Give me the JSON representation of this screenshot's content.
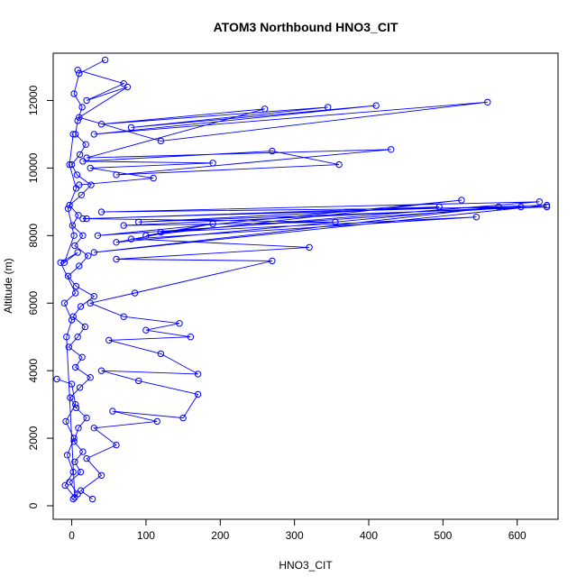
{
  "chart_data": {
    "type": "line",
    "title": "ATOM3 Northbound HNO3_CIT",
    "xlabel": "HNO3_CIT",
    "ylabel": "Altitude (m)",
    "xlim": [
      -25,
      655
    ],
    "ylim": [
      -400,
      13400
    ],
    "x_ticks": [
      0,
      100,
      200,
      300,
      400,
      500,
      600
    ],
    "y_ticks": [
      0,
      2000,
      4000,
      6000,
      8000,
      10000,
      12000
    ],
    "grid": false,
    "legend": "none",
    "colors": {
      "series": "#0000ff",
      "axes": "#000000"
    },
    "series": [
      {
        "points": [
          [
            2,
            200
          ],
          [
            8,
            350
          ],
          [
            -3,
            700
          ],
          [
            12,
            1000
          ],
          [
            4,
            1300
          ],
          [
            15,
            1600
          ],
          [
            3,
            1900
          ],
          [
            9,
            2300
          ],
          [
            20,
            2600
          ],
          [
            6,
            2900
          ],
          [
            -2,
            3200
          ],
          [
            11,
            3500
          ],
          [
            25,
            3800
          ],
          [
            5,
            4100
          ],
          [
            14,
            4400
          ],
          [
            -4,
            4700
          ],
          [
            8,
            5000
          ],
          [
            18,
            5300
          ],
          [
            2,
            5600
          ],
          [
            12,
            5900
          ],
          [
            30,
            6200
          ],
          [
            6,
            6500
          ],
          [
            -5,
            6800
          ],
          [
            10,
            7100
          ],
          [
            22,
            7400
          ],
          [
            4,
            7700
          ],
          [
            15,
            8000
          ],
          [
            1,
            8300
          ],
          [
            9,
            8600
          ],
          [
            -3,
            8900
          ],
          [
            13,
            9200
          ],
          [
            26,
            9500
          ],
          [
            7,
            9800
          ],
          [
            0,
            10100
          ],
          [
            11,
            10400
          ],
          [
            19,
            10700
          ],
          [
            5,
            11000
          ],
          [
            8,
            11400
          ],
          [
            14,
            11800
          ],
          [
            3,
            12200
          ],
          [
            10,
            12800
          ],
          [
            45,
            13200
          ]
        ]
      },
      {
        "points": [
          [
            28,
            200
          ],
          [
            12,
            450
          ],
          [
            40,
            900
          ],
          [
            20,
            1400
          ],
          [
            60,
            1800
          ],
          [
            30,
            2300
          ],
          [
            115,
            2500
          ],
          [
            55,
            2800
          ],
          [
            150,
            2600
          ],
          [
            170,
            3300
          ],
          [
            90,
            3700
          ],
          [
            40,
            4000
          ],
          [
            170,
            3900
          ],
          [
            120,
            4500
          ],
          [
            50,
            4900
          ],
          [
            160,
            5000
          ],
          [
            100,
            5200
          ],
          [
            145,
            5400
          ],
          [
            70,
            5600
          ],
          [
            25,
            6000
          ],
          [
            85,
            6300
          ],
          [
            270,
            7250
          ],
          [
            60,
            7300
          ],
          [
            320,
            7650
          ],
          [
            80,
            7900
          ],
          [
            545,
            8550
          ],
          [
            120,
            8100
          ],
          [
            630,
            9000
          ],
          [
            40,
            8700
          ],
          [
            640,
            8850
          ],
          [
            90,
            8400
          ],
          [
            495,
            8850
          ],
          [
            20,
            8500
          ],
          [
            355,
            8400
          ],
          [
            70,
            8300
          ],
          [
            605,
            8850
          ],
          [
            35,
            8000
          ],
          [
            525,
            9050
          ],
          [
            100,
            8000
          ],
          [
            190,
            8350
          ],
          [
            60,
            7800
          ],
          [
            575,
            8850
          ],
          [
            30,
            7500
          ],
          [
            640,
            8900
          ],
          [
            15,
            8500
          ]
        ]
      },
      {
        "points": [
          [
            10,
            9500
          ],
          [
            110,
            9700
          ],
          [
            25,
            10000
          ],
          [
            190,
            10150
          ],
          [
            15,
            10200
          ],
          [
            270,
            10500
          ],
          [
            360,
            10100
          ],
          [
            60,
            9800
          ],
          [
            430,
            10550
          ],
          [
            20,
            10300
          ],
          [
            260,
            11750
          ],
          [
            40,
            11300
          ],
          [
            345,
            11800
          ],
          [
            80,
            11200
          ],
          [
            410,
            11850
          ],
          [
            30,
            11000
          ],
          [
            560,
            11950
          ],
          [
            120,
            10800
          ],
          [
            10,
            11500
          ],
          [
            75,
            12400
          ],
          [
            20,
            12000
          ],
          [
            70,
            12500
          ],
          [
            8,
            12900
          ]
        ]
      },
      {
        "points": [
          [
            -20,
            3750
          ],
          [
            0,
            3600
          ],
          [
            5,
            3000
          ],
          [
            -8,
            2500
          ],
          [
            3,
            2000
          ],
          [
            -6,
            1500
          ],
          [
            2,
            1000
          ],
          [
            -9,
            600
          ],
          [
            4,
            250
          ],
          [
            -7,
            5000
          ],
          [
            0,
            5500
          ],
          [
            -10,
            6000
          ],
          [
            5,
            6300
          ],
          [
            -15,
            7200
          ],
          [
            8,
            7500
          ],
          [
            -10,
            7200
          ],
          [
            3,
            8000
          ],
          [
            -5,
            8800
          ],
          [
            6,
            9400
          ],
          [
            -3,
            10100
          ],
          [
            2,
            11000
          ]
        ]
      }
    ]
  }
}
